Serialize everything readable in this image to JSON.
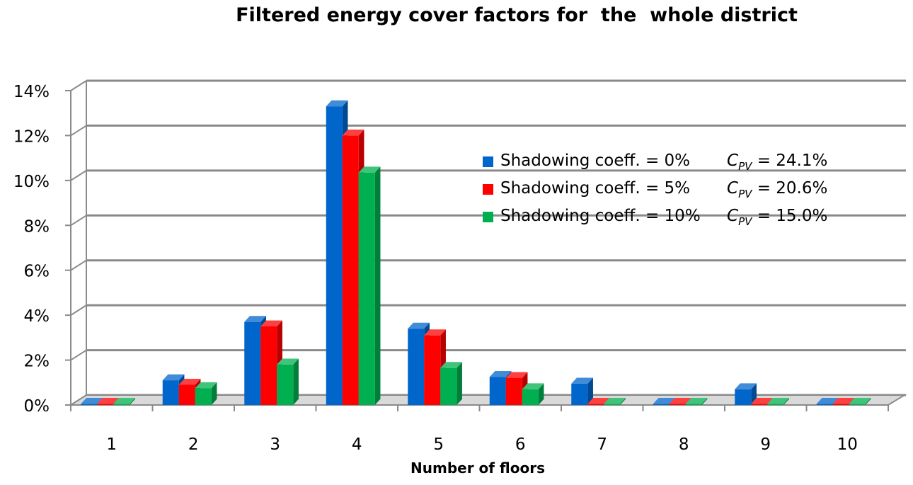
{
  "chart_data": {
    "type": "bar",
    "title": "Filtered energy cover factors for  the  whole district",
    "xlabel": "Number of floors",
    "ylabel": "",
    "categories": [
      "1",
      "2",
      "3",
      "4",
      "5",
      "6",
      "7",
      "8",
      "9",
      "10"
    ],
    "ylim": [
      0,
      14
    ],
    "yticks": [
      "0%",
      "2%",
      "4%",
      "6%",
      "8%",
      "10%",
      "12%",
      "14%"
    ],
    "grid": true,
    "legend_position": "right",
    "series": [
      {
        "name": "Shadowing coeff. = 0%",
        "values": [
          0.05,
          1.1,
          3.7,
          13.3,
          3.4,
          1.25,
          0.95,
          0.05,
          0.7,
          0.05
        ],
        "color": "#0066cc",
        "cpv_symbol": "C",
        "cpv_subscript": "PV",
        "cpv_value": "= 24.1%"
      },
      {
        "name": "Shadowing coeff. = 5%",
        "values": [
          0.05,
          0.9,
          3.5,
          12.0,
          3.1,
          1.2,
          0.05,
          0.05,
          0.05,
          0.05
        ],
        "color": "#ff0000",
        "cpv_symbol": "C",
        "cpv_subscript": "PV",
        "cpv_value": "= 20.6%"
      },
      {
        "name": "Shadowing coeff. = 10%",
        "values": [
          0.05,
          0.75,
          1.8,
          10.35,
          1.65,
          0.7,
          0.05,
          0.05,
          0.05,
          0.05
        ],
        "color": "#00b050",
        "cpv_symbol": "C",
        "cpv_subscript": "PV",
        "cpv_value": "= 15.0%"
      }
    ]
  }
}
